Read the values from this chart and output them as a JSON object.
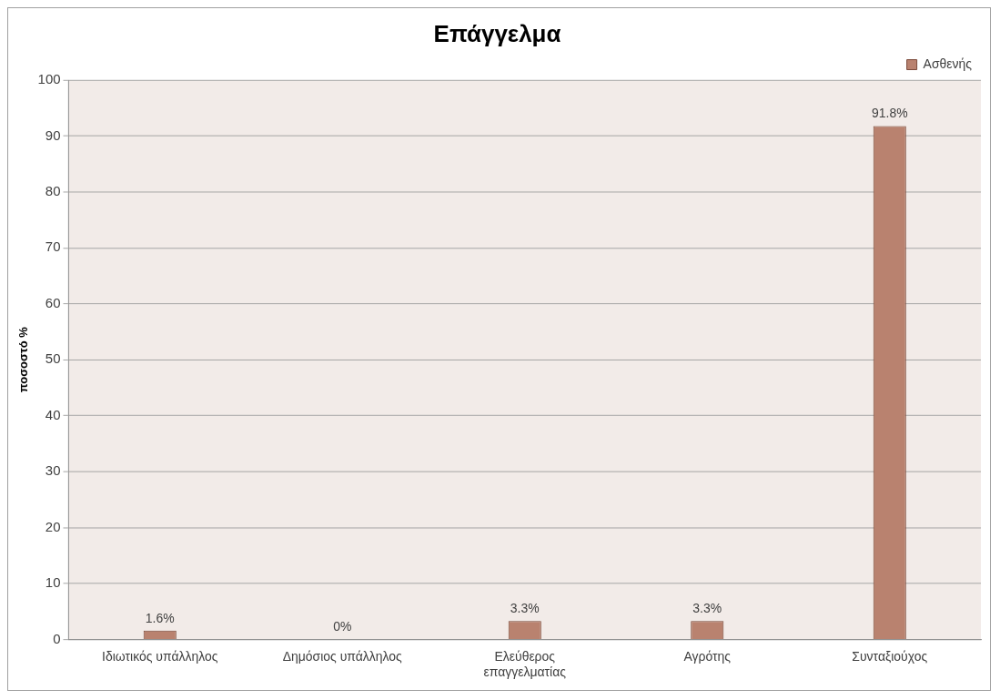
{
  "chart_data": {
    "type": "bar",
    "title": "Επάγγελμα",
    "ylabel": "ποσοστό %",
    "categories": [
      "Ιδιωτικός υπάλληλος",
      "Δημόσιος υπάλληλος",
      "Ελεύθερος επαγγελματίας",
      "Αγρότης",
      "Συνταξιούχος"
    ],
    "series": [
      {
        "name": "Ασθενής",
        "color": "#b9826f",
        "values": [
          1.6,
          0,
          3.3,
          3.3,
          91.8
        ],
        "value_labels": [
          "1.6%",
          "0%",
          "3.3%",
          "3.3%",
          "91.8%"
        ]
      }
    ],
    "ylim": [
      0,
      100
    ],
    "yticks": [
      0,
      10,
      20,
      30,
      40,
      50,
      60,
      70,
      80,
      90,
      100
    ],
    "grid": "y",
    "legend": "top right"
  }
}
